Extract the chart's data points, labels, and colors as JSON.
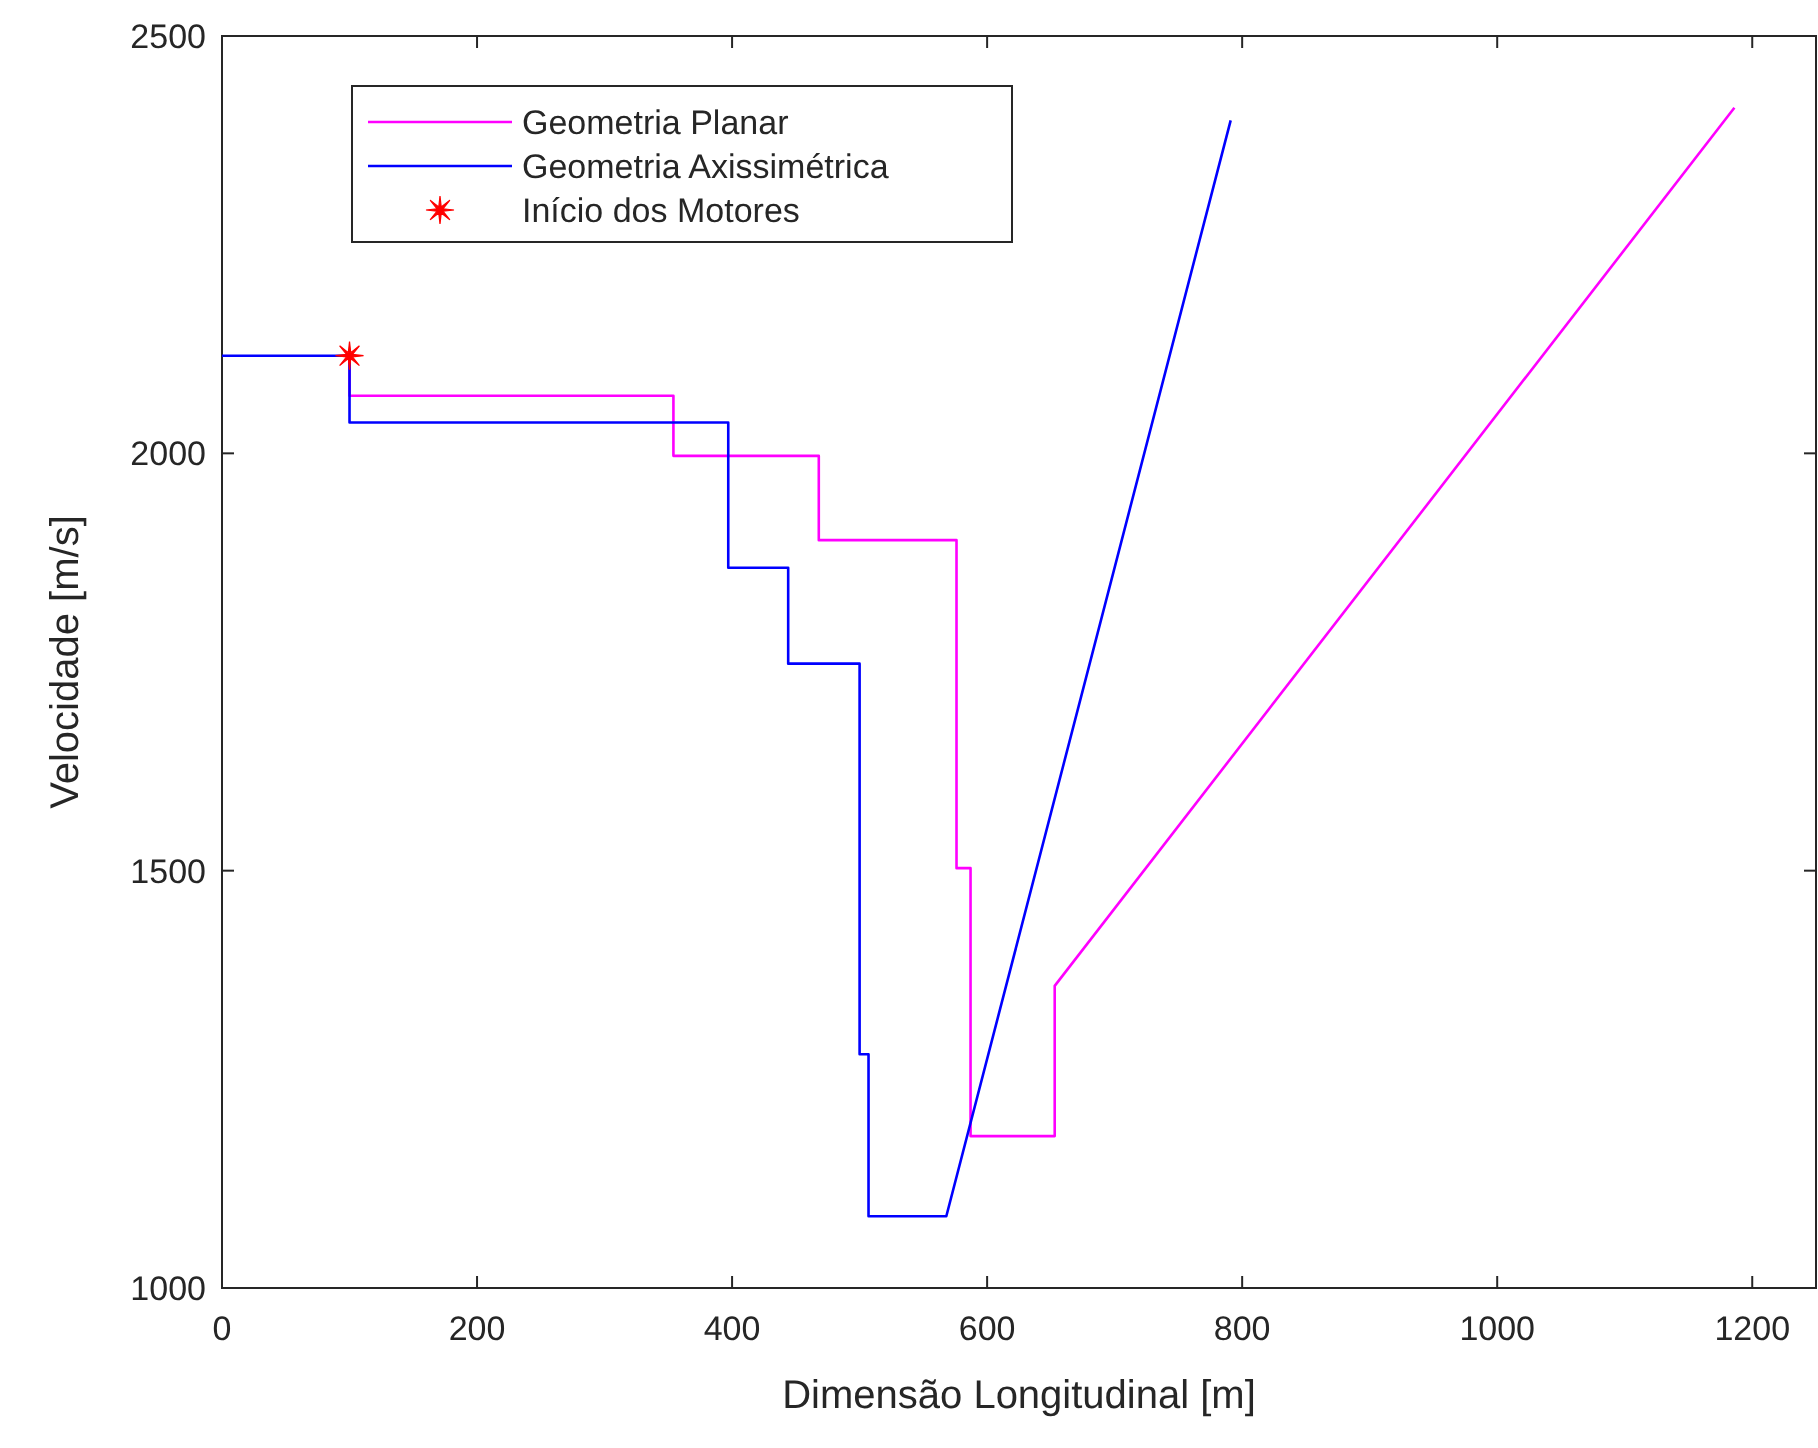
{
  "chart_data": {
    "type": "line",
    "xlabel": "Dimensão Longitudinal [m]",
    "ylabel": "Velocidade [m/s]",
    "xlim": [
      0,
      1250
    ],
    "xticks": [
      0,
      200,
      400,
      600,
      800,
      1000,
      1200
    ],
    "ylim": [
      1000,
      2500
    ],
    "yticks": [
      1000,
      1500,
      2000,
      2500
    ],
    "grid": false,
    "legend": "top left",
    "marker": "none",
    "line_style": "solid",
    "series": [
      {
        "name": "Geometria Planar",
        "color": "#ff00ff",
        "x": [
          100,
          100,
          354,
          354,
          468,
          468,
          576,
          576,
          587,
          587,
          653,
          653,
          1186
        ],
        "values": [
          2117,
          2069,
          2069,
          1997,
          1997,
          1896,
          1896,
          1503,
          1503,
          1182,
          1182,
          1362,
          2414
        ]
      },
      {
        "name": "Geometria Axissimétrica",
        "color": "#0000ff",
        "x": [
          0,
          100,
          100,
          397,
          397,
          444,
          444,
          500,
          500,
          507,
          507,
          568,
          791
        ],
        "values": [
          2117,
          2117,
          2037,
          2037,
          1863,
          1863,
          1748,
          1748,
          1280,
          1280,
          1086,
          1086,
          2399
        ]
      },
      {
        "name": "Início dos Motores",
        "type": "scatter",
        "marker": "star",
        "color": "#ff0000",
        "x": [
          100
        ],
        "values": [
          2117
        ]
      }
    ]
  }
}
